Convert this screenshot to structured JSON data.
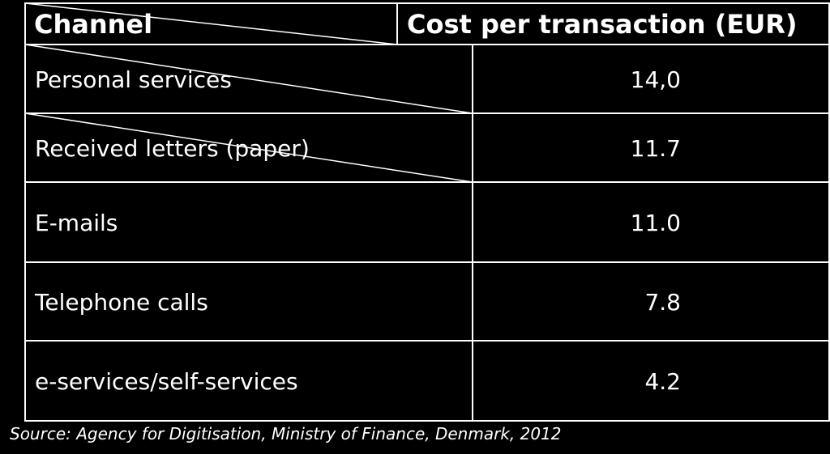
{
  "chart_data": {
    "type": "table",
    "columns": [
      "Channel",
      "Cost per transaction (EUR)"
    ],
    "rows": [
      {
        "channel": "Personal services",
        "value": "14,0"
      },
      {
        "channel": "Received letters (paper)",
        "value": "11.7"
      },
      {
        "channel": "E-mails",
        "value": "11.0"
      },
      {
        "channel": "Telephone calls",
        "value": "7.8"
      },
      {
        "channel": "e-services/self-services",
        "value": "4.2"
      }
    ],
    "source": "Source: Agency for Digitisation, Ministry of Finance, Denmark, 2012"
  },
  "colors": {
    "background": "#000000",
    "text": "#ffffff",
    "header_fill": "#000000",
    "grid_line": "#ffffff"
  }
}
